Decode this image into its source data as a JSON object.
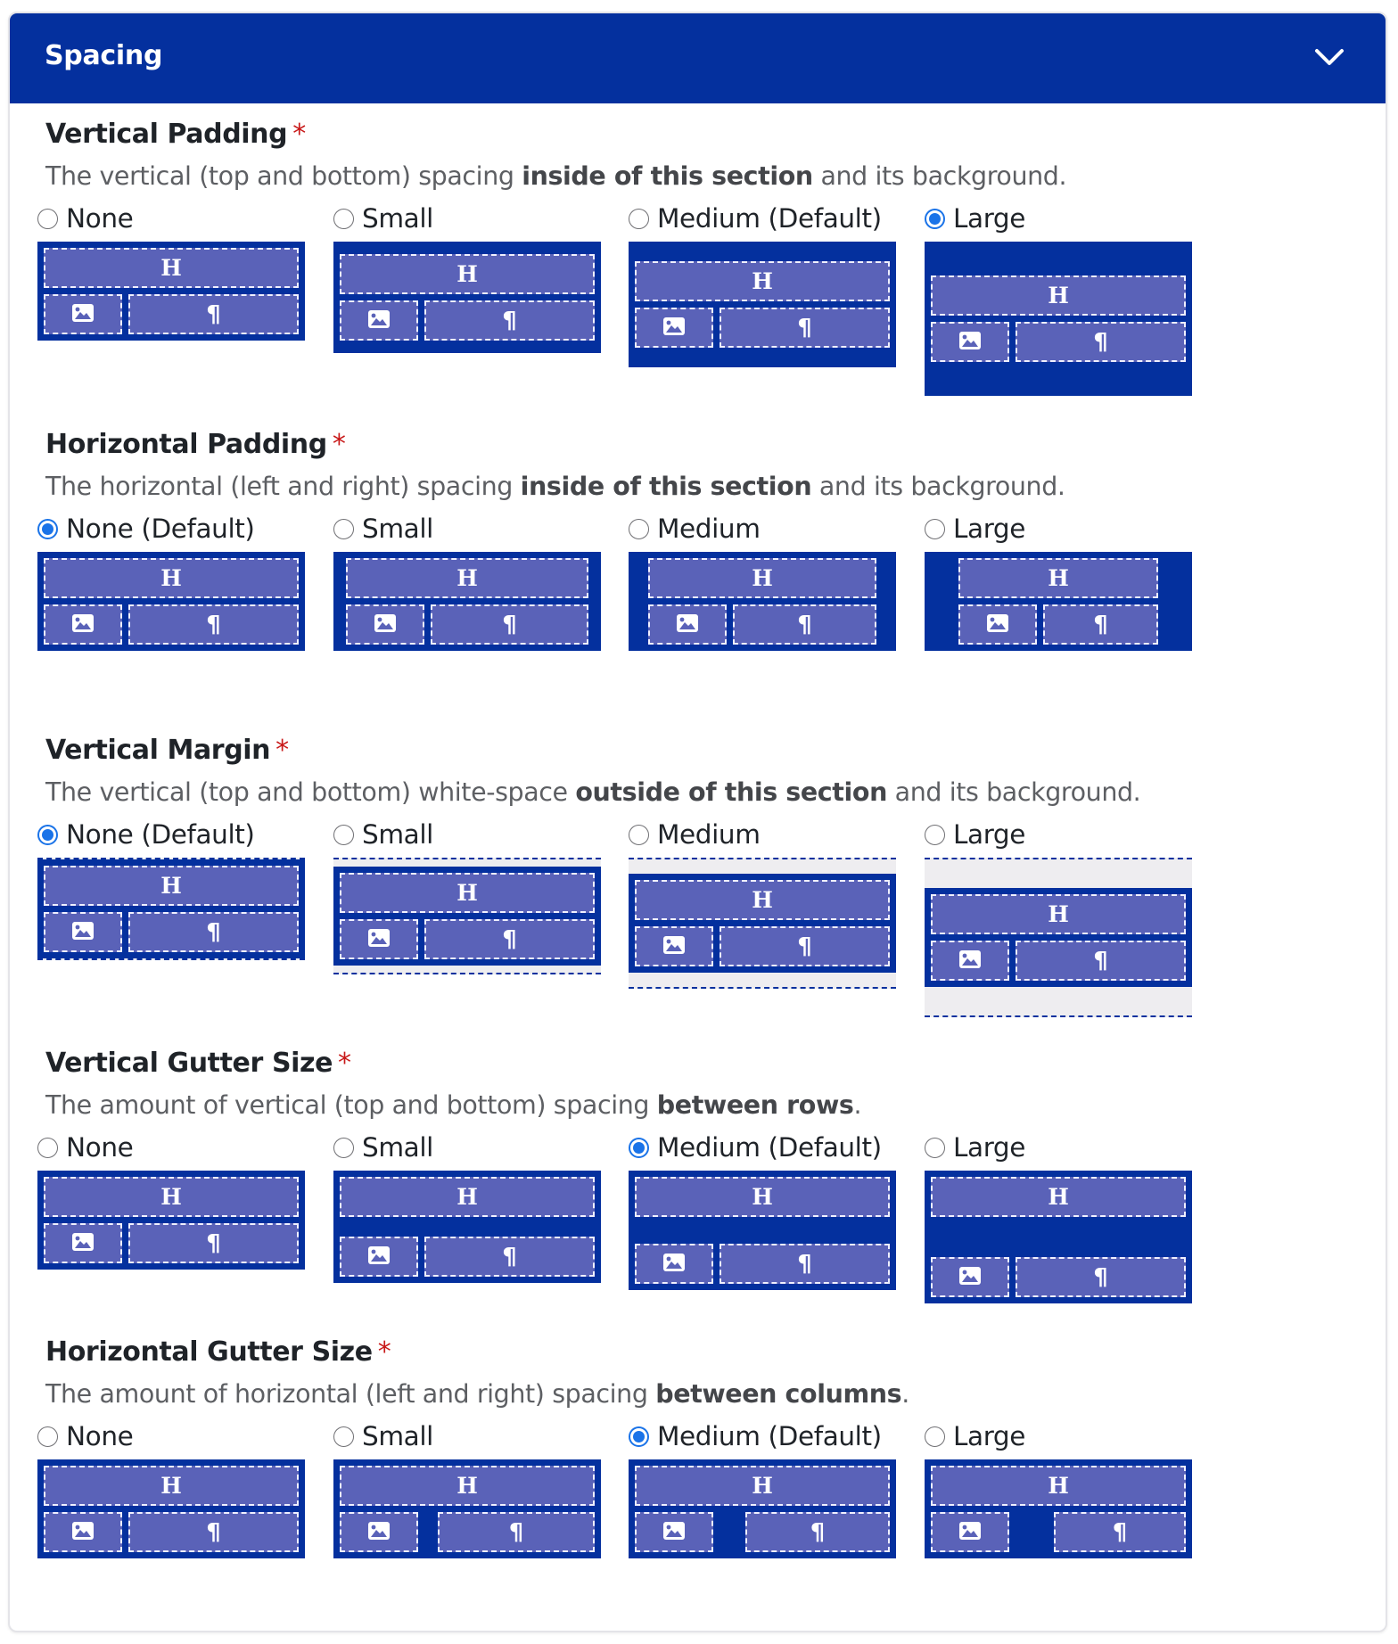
{
  "panel": {
    "title": "Spacing",
    "toggle_icon": "chevron-down-icon",
    "colors": {
      "header": "#04309e",
      "section": "#04309e",
      "block": "#5a62b8",
      "margin": "#eeedf0",
      "radio_selected": "#1a73e8",
      "required": "#c81818"
    }
  },
  "fields": [
    {
      "id": "vertical-padding",
      "title": "Vertical Padding",
      "required": "*",
      "desc_pre": "The vertical (top and bottom) spacing ",
      "desc_bold": "inside of this section",
      "desc_post": " and its background.",
      "options": [
        {
          "label": "None",
          "checked": false
        },
        {
          "label": "Small",
          "checked": false
        },
        {
          "label": "Medium (Default)",
          "checked": false
        },
        {
          "label": "Large",
          "checked": true
        }
      ]
    },
    {
      "id": "horizontal-padding",
      "title": "Horizontal Padding",
      "required": "*",
      "desc_pre": "The horizontal (left and right) spacing ",
      "desc_bold": "inside of this section",
      "desc_post": " and its background.",
      "options": [
        {
          "label": "None (Default)",
          "checked": true
        },
        {
          "label": "Small",
          "checked": false
        },
        {
          "label": "Medium",
          "checked": false
        },
        {
          "label": "Large",
          "checked": false
        }
      ]
    },
    {
      "id": "vertical-margin",
      "title": "Vertical Margin",
      "required": "*",
      "desc_pre": "The vertical (top and bottom) white-space ",
      "desc_bold": "outside of this section",
      "desc_post": " and its background.",
      "options": [
        {
          "label": "None (Default)",
          "checked": true
        },
        {
          "label": "Small",
          "checked": false
        },
        {
          "label": "Medium",
          "checked": false
        },
        {
          "label": "Large",
          "checked": false
        }
      ]
    },
    {
      "id": "vertical-gutter-size",
      "title": "Vertical Gutter Size",
      "required": "*",
      "desc_pre": "The amount of vertical (top and bottom) spacing ",
      "desc_bold": "between rows",
      "desc_post": ".",
      "options": [
        {
          "label": "None",
          "checked": false
        },
        {
          "label": "Small",
          "checked": false
        },
        {
          "label": "Medium (Default)",
          "checked": true
        },
        {
          "label": "Large",
          "checked": false
        }
      ]
    },
    {
      "id": "horizontal-gutter-size",
      "title": "Horizontal Gutter Size",
      "required": "*",
      "desc_pre": "The amount of horizontal (left and right) spacing ",
      "desc_bold": "between columns",
      "desc_post": ".",
      "options": [
        {
          "label": "None",
          "checked": false
        },
        {
          "label": "Small",
          "checked": false
        },
        {
          "label": "Medium (Default)",
          "checked": true
        },
        {
          "label": "Large",
          "checked": false
        }
      ]
    }
  ],
  "diagram": {
    "heading_glyph": "H",
    "paragraph_glyph": "¶",
    "image_icon": "image-icon"
  }
}
